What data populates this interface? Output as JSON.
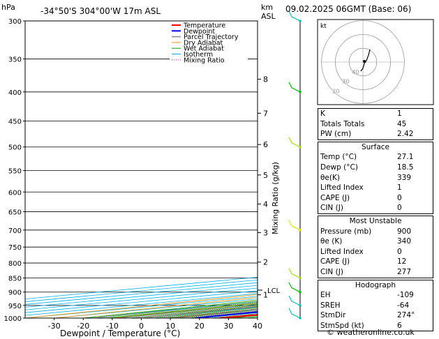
{
  "header": {
    "location": "-34°50'S 304°00'W 17m ASL",
    "datetime": "09.02.2025 06GMT (Base: 06)",
    "hpa_label": "hPa",
    "km_label": "km",
    "asl_label": "ASL"
  },
  "credit": "© weatheronline.co.uk",
  "colors": {
    "temperature": "#ff0000",
    "dewpoint": "#0000ff",
    "parcel": "#a0a0a0",
    "dry_adiabat": "#ff8c00",
    "wet_adiabat": "#00a000",
    "isotherm": "#00b0f0",
    "mixing_ratio": "#ff00ff",
    "wind": "#00c0c0"
  },
  "chart_data": {
    "type": "skew-t",
    "xlabel": "Dewpoint / Temperature (°C)",
    "ylabel_right": "Mixing Ratio (g/kg)",
    "pressure_levels": [
      300,
      350,
      400,
      450,
      500,
      550,
      600,
      650,
      700,
      750,
      800,
      850,
      900,
      950,
      1000
    ],
    "temp_ticks": [
      -30,
      -20,
      -10,
      0,
      10,
      20,
      30,
      40
    ],
    "km_ticks": [
      {
        "km": "1",
        "p": 910
      },
      {
        "km": "2",
        "p": 797
      },
      {
        "km": "3",
        "p": 707
      },
      {
        "km": "4",
        "p": 630
      },
      {
        "km": "5",
        "p": 560
      },
      {
        "km": "6",
        "p": 495
      },
      {
        "km": "7",
        "p": 436
      },
      {
        "km": "8",
        "p": 380
      }
    ],
    "lcl": {
      "label": "LCL",
      "p": 893
    },
    "mixing_ratio_labels": [
      "1",
      "2",
      "3",
      "4",
      "6",
      "8",
      "10",
      "15",
      "20",
      "25"
    ],
    "legend": [
      "Temperature",
      "Dewpoint",
      "Parcel Trajectory",
      "Dry Adiabat",
      "Wet Adiabat",
      "Isotherm",
      "Mixing Ratio"
    ],
    "temperature": [
      [
        1000,
        27.1
      ],
      [
        975,
        29.5
      ],
      [
        950,
        30.5
      ],
      [
        925,
        28.5
      ],
      [
        900,
        26.0
      ],
      [
        875,
        24.5
      ],
      [
        850,
        24.0
      ],
      [
        800,
        21.5
      ],
      [
        750,
        18.0
      ],
      [
        700,
        13.5
      ],
      [
        650,
        8.5
      ],
      [
        600,
        3.5
      ],
      [
        550,
        -1.5
      ],
      [
        500,
        -7.0
      ],
      [
        450,
        -13.0
      ],
      [
        400,
        -20.5
      ],
      [
        350,
        -29.0
      ],
      [
        300,
        -39.5
      ]
    ],
    "dewpoint": [
      [
        1000,
        18.5
      ],
      [
        950,
        17.0
      ],
      [
        900,
        14.5
      ],
      [
        850,
        11.5
      ],
      [
        800,
        -1.0
      ],
      [
        750,
        -19.0
      ],
      [
        700,
        -18.0
      ],
      [
        650,
        -14.0
      ],
      [
        600,
        -6.0
      ],
      [
        550,
        -14.0
      ],
      [
        500,
        -12.0
      ],
      [
        450,
        -26.0
      ],
      [
        400,
        -44.0
      ],
      [
        350,
        -40.0
      ],
      [
        300,
        -47.0
      ]
    ],
    "parcel": [
      [
        1000,
        27.1
      ],
      [
        950,
        23.0
      ],
      [
        900,
        20.0
      ],
      [
        850,
        18.5
      ],
      [
        800,
        16.0
      ],
      [
        750,
        13.5
      ],
      [
        700,
        10.5
      ],
      [
        650,
        7.0
      ],
      [
        600,
        3.0
      ],
      [
        550,
        -1.5
      ],
      [
        500,
        -7.0
      ]
    ],
    "winds": [
      {
        "p": 1000,
        "color": "#00c0c0"
      },
      {
        "p": 950,
        "color": "#00c0c0"
      },
      {
        "p": 900,
        "color": "#00c000"
      },
      {
        "p": 850,
        "color": "#a0e000"
      },
      {
        "p": 700,
        "color": "#e0e000"
      },
      {
        "p": 500,
        "color": "#a0e000"
      },
      {
        "p": 400,
        "color": "#00c000"
      },
      {
        "p": 300,
        "color": "#00c0c0"
      }
    ]
  },
  "hodograph": {
    "label": "kt",
    "ring_labels": [
      "40",
      "30",
      "20"
    ]
  },
  "indices": [
    {
      "k": "K",
      "v": "1"
    },
    {
      "k": "Totals Totals",
      "v": "45"
    },
    {
      "k": "PW (cm)",
      "v": "2.42"
    }
  ],
  "surface": {
    "title": "Surface",
    "rows": [
      {
        "k": "Temp (°C)",
        "v": "27.1"
      },
      {
        "k": "Dewp (°C)",
        "v": "18.5"
      },
      {
        "k": "θe(K)",
        "v": "339"
      },
      {
        "k": "Lifted Index",
        "v": "1"
      },
      {
        "k": "CAPE (J)",
        "v": "0"
      },
      {
        "k": "CIN (J)",
        "v": "0"
      }
    ]
  },
  "most_unstable": {
    "title": "Most Unstable",
    "rows": [
      {
        "k": "Pressure (mb)",
        "v": "900"
      },
      {
        "k": "θe (K)",
        "v": "340"
      },
      {
        "k": "Lifted Index",
        "v": "0"
      },
      {
        "k": "CAPE (J)",
        "v": "12"
      },
      {
        "k": "CIN (J)",
        "v": "277"
      }
    ]
  },
  "hodo_table": {
    "title": "Hodograph",
    "rows": [
      {
        "k": "EH",
        "v": "-109"
      },
      {
        "k": "SREH",
        "v": "-64"
      },
      {
        "k": "StmDir",
        "v": "274°"
      },
      {
        "k": "StmSpd (kt)",
        "v": "6"
      }
    ]
  }
}
